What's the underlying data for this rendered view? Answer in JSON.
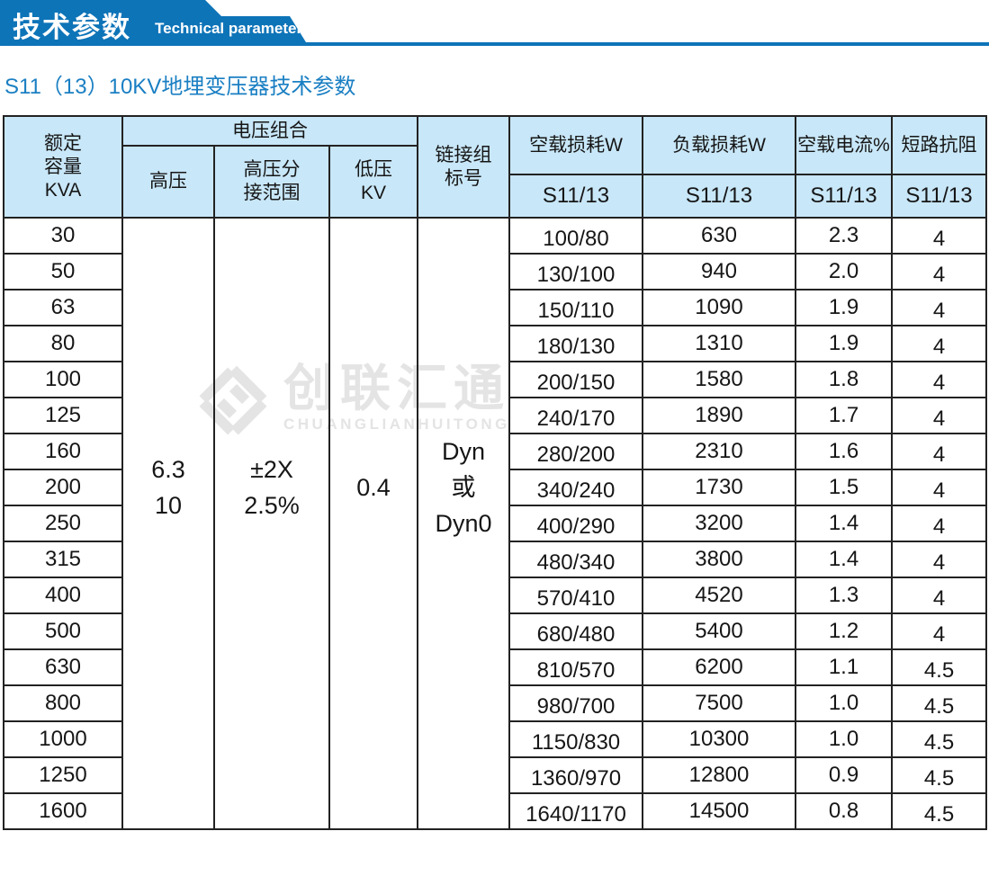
{
  "banner": {
    "title_cn": "技术参数",
    "title_en": "Technical parameter",
    "color": "#0e74b8"
  },
  "page_title": "S11（13）10KV地埋变压器技术参数",
  "watermark": {
    "cn": "创联汇通",
    "en": "CHUANGLIANHUITONG",
    "color": "#e4e4e4"
  },
  "table": {
    "header_bg": "#c8e7f8",
    "headers": {
      "capacity": "额定\n容量\nKVA",
      "voltage_group": "电压组合",
      "hv": "高压",
      "hv_tap": "高压分\n接范围",
      "lv": "低压\nKV",
      "connection": "链接组\n标号",
      "no_load_loss": "空载损耗W",
      "load_loss": "负载损耗W",
      "no_load_current": "空载电流%",
      "impedance": "短路抗阻",
      "sub": "S11/13"
    },
    "merged": {
      "hv": "6.3\n10",
      "hv_tap": "±2X\n2.5%",
      "lv": "0.4",
      "connection": "Dyn\n或\nDyn0"
    },
    "rows": [
      {
        "capacity": "30",
        "no_load_loss": "100/80",
        "load_loss": "630",
        "no_load_current": "2.3",
        "impedance": "4"
      },
      {
        "capacity": "50",
        "no_load_loss": "130/100",
        "load_loss": "940",
        "no_load_current": "2.0",
        "impedance": "4"
      },
      {
        "capacity": "63",
        "no_load_loss": "150/110",
        "load_loss": "1090",
        "no_load_current": "1.9",
        "impedance": "4"
      },
      {
        "capacity": "80",
        "no_load_loss": "180/130",
        "load_loss": "1310",
        "no_load_current": "1.9",
        "impedance": "4"
      },
      {
        "capacity": "100",
        "no_load_loss": "200/150",
        "load_loss": "1580",
        "no_load_current": "1.8",
        "impedance": "4"
      },
      {
        "capacity": "125",
        "no_load_loss": "240/170",
        "load_loss": "1890",
        "no_load_current": "1.7",
        "impedance": "4"
      },
      {
        "capacity": "160",
        "no_load_loss": "280/200",
        "load_loss": "2310",
        "no_load_current": "1.6",
        "impedance": "4"
      },
      {
        "capacity": "200",
        "no_load_loss": "340/240",
        "load_loss": "1730",
        "no_load_current": "1.5",
        "impedance": "4"
      },
      {
        "capacity": "250",
        "no_load_loss": "400/290",
        "load_loss": "3200",
        "no_load_current": "1.4",
        "impedance": "4"
      },
      {
        "capacity": "315",
        "no_load_loss": "480/340",
        "load_loss": "3800",
        "no_load_current": "1.4",
        "impedance": "4"
      },
      {
        "capacity": "400",
        "no_load_loss": "570/410",
        "load_loss": "4520",
        "no_load_current": "1.3",
        "impedance": "4"
      },
      {
        "capacity": "500",
        "no_load_loss": "680/480",
        "load_loss": "5400",
        "no_load_current": "1.2",
        "impedance": "4"
      },
      {
        "capacity": "630",
        "no_load_loss": "810/570",
        "load_loss": "6200",
        "no_load_current": "1.1",
        "impedance": "4.5"
      },
      {
        "capacity": "800",
        "no_load_loss": "980/700",
        "load_loss": "7500",
        "no_load_current": "1.0",
        "impedance": "4.5"
      },
      {
        "capacity": "1000",
        "no_load_loss": "1150/830",
        "load_loss": "10300",
        "no_load_current": "1.0",
        "impedance": "4.5"
      },
      {
        "capacity": "1250",
        "no_load_loss": "1360/970",
        "load_loss": "12800",
        "no_load_current": "0.9",
        "impedance": "4.5"
      },
      {
        "capacity": "1600",
        "no_load_loss": "1640/1170",
        "load_loss": "14500",
        "no_load_current": "0.8",
        "impedance": "4.5"
      }
    ]
  }
}
